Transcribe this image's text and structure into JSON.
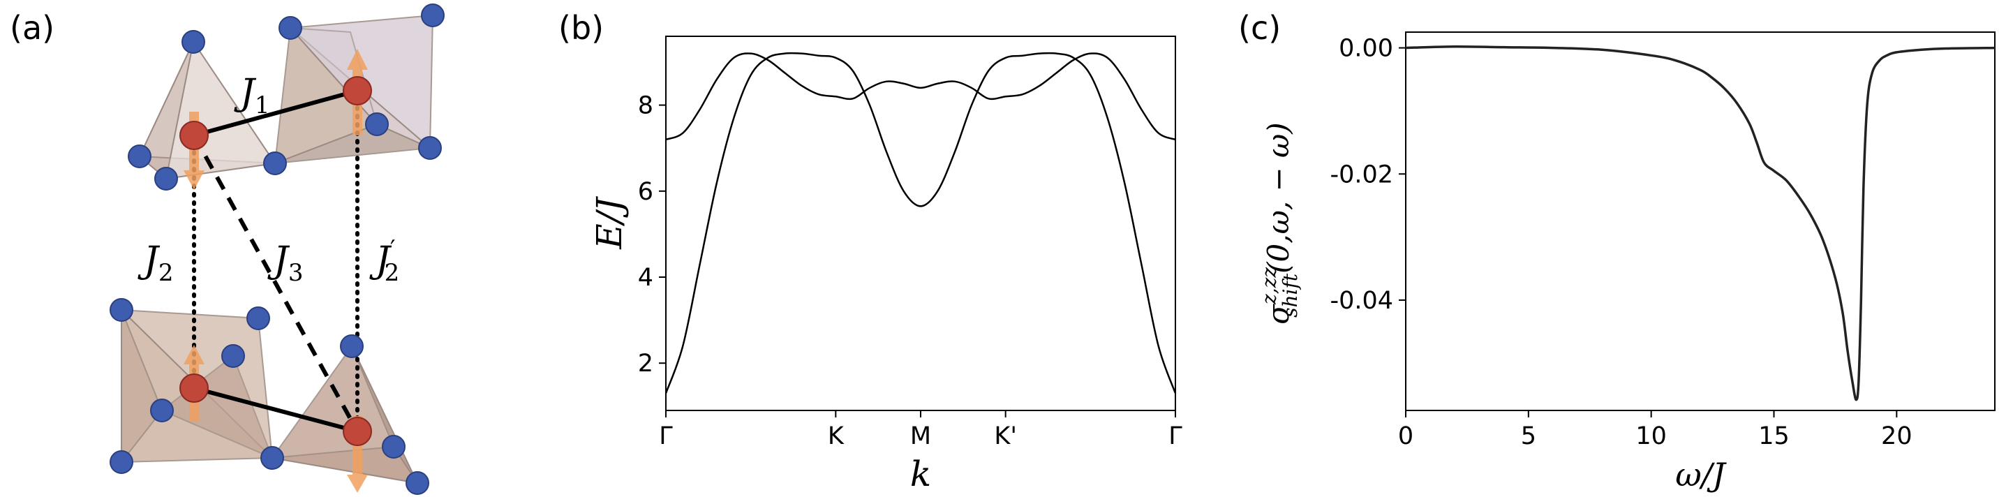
{
  "panels": {
    "a": {
      "label": "(a)",
      "couplings": {
        "j1": {
          "base": "J",
          "sub": "1",
          "prime": ""
        },
        "j2": {
          "base": "J",
          "sub": "2",
          "prime": ""
        },
        "j3": {
          "base": "J",
          "sub": "3",
          "prime": ""
        },
        "j2p": {
          "base": "J",
          "sub": "2",
          "prime": "′"
        }
      },
      "colors": {
        "ligand": "#3f5dae",
        "metal": "#c0473a",
        "spin_arrow": "#f0a060",
        "polyhedron": "#bfa8a0"
      }
    },
    "b": {
      "label": "(b)",
      "xlabel": "k",
      "ylabel": "E/J"
    },
    "c": {
      "label": "(c)",
      "xlabel": "ω/J",
      "ylabel_main": "σ",
      "ylabel_super": "z,zz",
      "ylabel_sub": "shift",
      "ylabel_args": "(0,ω, − ω)"
    }
  },
  "chart_data": [
    {
      "type": "line",
      "panel": "b",
      "xlabel": "k",
      "ylabel": "E/J",
      "x_ticks": [
        {
          "label": "Γ",
          "pos": 0
        },
        {
          "label": "K",
          "pos": 1
        },
        {
          "label": "M",
          "pos": 1.5
        },
        {
          "label": "K'",
          "pos": 2
        },
        {
          "label": "Γ",
          "pos": 3
        }
      ],
      "xlim": [
        0,
        3
      ],
      "ylim": [
        0.9,
        9.6
      ],
      "y_ticks": [
        "2",
        "4",
        "6",
        "8"
      ],
      "y_tick_values": [
        2,
        4,
        6,
        8
      ],
      "series": [
        {
          "x": [
            0,
            0.1,
            0.2,
            0.3,
            0.4,
            0.5,
            0.6,
            0.7,
            0.8,
            0.9,
            1.0,
            1.1,
            1.2,
            1.3,
            1.4,
            1.5,
            1.6,
            1.7,
            1.8,
            1.9,
            2.0,
            2.1,
            2.2,
            2.3,
            2.4,
            2.5,
            2.6,
            2.7,
            2.8,
            2.9,
            3.0
          ],
          "y": [
            1.3,
            2.4,
            4.3,
            6.2,
            7.7,
            8.7,
            9.1,
            9.2,
            9.2,
            9.15,
            9.1,
            8.8,
            8.0,
            6.9,
            6.0,
            5.65,
            6.0,
            6.9,
            8.0,
            8.8,
            9.1,
            9.15,
            9.2,
            9.2,
            9.1,
            8.7,
            7.7,
            6.2,
            4.3,
            2.4,
            1.3
          ]
        },
        {
          "x": [
            0,
            0.1,
            0.2,
            0.3,
            0.4,
            0.5,
            0.6,
            0.7,
            0.8,
            0.9,
            1.0,
            1.1,
            1.2,
            1.3,
            1.4,
            1.5,
            1.6,
            1.7,
            1.8,
            1.9,
            2.0,
            2.1,
            2.2,
            2.3,
            2.4,
            2.5,
            2.6,
            2.7,
            2.8,
            2.9,
            3.0
          ],
          "y": [
            7.2,
            7.35,
            7.9,
            8.6,
            9.1,
            9.2,
            9.05,
            8.75,
            8.45,
            8.25,
            8.2,
            8.15,
            8.4,
            8.55,
            8.5,
            8.4,
            8.5,
            8.55,
            8.4,
            8.15,
            8.2,
            8.25,
            8.45,
            8.75,
            9.05,
            9.2,
            9.1,
            8.6,
            7.9,
            7.35,
            7.2
          ]
        }
      ]
    },
    {
      "type": "line",
      "panel": "c",
      "xlabel": "ω/J",
      "xlim": [
        0,
        24
      ],
      "ylim": [
        -0.0575,
        0.0025
      ],
      "x_ticks": [
        "0",
        "5",
        "10",
        "15",
        "20"
      ],
      "x_tick_values": [
        0,
        5,
        10,
        15,
        20
      ],
      "y_ticks": [
        "0.00",
        "-0.02",
        "-0.04"
      ],
      "y_tick_values": [
        0,
        -0.02,
        -0.04
      ],
      "series": [
        {
          "x": [
            0,
            2,
            4,
            6,
            8,
            10,
            11,
            12,
            12.5,
            13,
            13.5,
            14,
            14.3,
            14.6,
            15,
            15.5,
            16,
            16.5,
            17,
            17.5,
            17.8,
            18,
            18.2,
            18.35,
            18.45,
            18.55,
            18.65,
            18.8,
            19,
            19.3,
            19.6,
            20,
            21,
            22,
            24
          ],
          "y": [
            0,
            0.0002,
            0.0001,
            0,
            -0.0003,
            -0.0012,
            -0.002,
            -0.0035,
            -0.0048,
            -0.0065,
            -0.0088,
            -0.012,
            -0.015,
            -0.0182,
            -0.0195,
            -0.021,
            -0.0235,
            -0.0265,
            -0.0305,
            -0.0365,
            -0.042,
            -0.048,
            -0.053,
            -0.0558,
            -0.053,
            -0.04,
            -0.022,
            -0.009,
            -0.004,
            -0.002,
            -0.0012,
            -0.0007,
            -0.0003,
            -0.0001,
            0
          ]
        }
      ]
    }
  ]
}
